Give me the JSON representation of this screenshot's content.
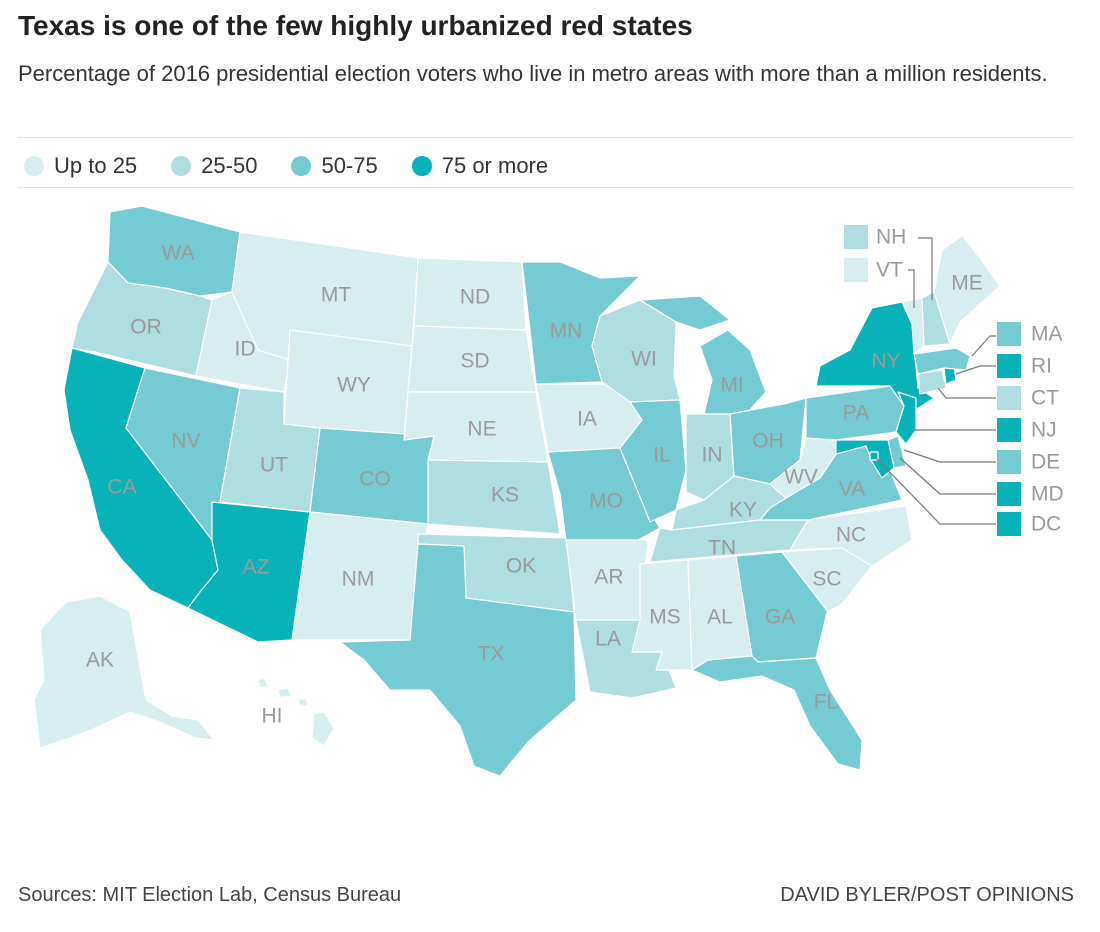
{
  "title": "Texas is one of the few highly urbanized red states",
  "subtitle": "Percentage of 2016 presidential election voters who live in metro areas with more than a million residents.",
  "legend": [
    {
      "label": "Up to 25",
      "color": "#d7eef0"
    },
    {
      "label": "25-50",
      "color": "#aedde2"
    },
    {
      "label": "50-75",
      "color": "#75cbd3"
    },
    {
      "label": "75 or more",
      "color": "#07b2b9"
    }
  ],
  "states": {
    "WA": {
      "label": "WA",
      "bin": 2
    },
    "OR": {
      "label": "OR",
      "bin": 1
    },
    "CA": {
      "label": "CA",
      "bin": 3
    },
    "ID": {
      "label": "ID",
      "bin": 0
    },
    "NV": {
      "label": "NV",
      "bin": 2
    },
    "AZ": {
      "label": "AZ",
      "bin": 3
    },
    "MT": {
      "label": "MT",
      "bin": 0
    },
    "WY": {
      "label": "WY",
      "bin": 0
    },
    "UT": {
      "label": "UT",
      "bin": 1
    },
    "CO": {
      "label": "CO",
      "bin": 2
    },
    "NM": {
      "label": "NM",
      "bin": 0
    },
    "ND": {
      "label": "ND",
      "bin": 0
    },
    "SD": {
      "label": "SD",
      "bin": 0
    },
    "NE": {
      "label": "NE",
      "bin": 0
    },
    "KS": {
      "label": "KS",
      "bin": 1
    },
    "OK": {
      "label": "OK",
      "bin": 1
    },
    "TX": {
      "label": "TX",
      "bin": 2
    },
    "MN": {
      "label": "MN",
      "bin": 2
    },
    "IA": {
      "label": "IA",
      "bin": 0
    },
    "MO": {
      "label": "MO",
      "bin": 2
    },
    "AR": {
      "label": "AR",
      "bin": 0
    },
    "LA": {
      "label": "LA",
      "bin": 1
    },
    "WI": {
      "label": "WI",
      "bin": 1
    },
    "IL": {
      "label": "IL",
      "bin": 2
    },
    "MI": {
      "label": "MI",
      "bin": 2
    },
    "IN": {
      "label": "IN",
      "bin": 1
    },
    "OH": {
      "label": "OH",
      "bin": 2
    },
    "KY": {
      "label": "KY",
      "bin": 1
    },
    "TN": {
      "label": "TN",
      "bin": 1
    },
    "MS": {
      "label": "MS",
      "bin": 0
    },
    "AL": {
      "label": "AL",
      "bin": 0
    },
    "GA": {
      "label": "GA",
      "bin": 2
    },
    "FL": {
      "label": "FL",
      "bin": 2
    },
    "SC": {
      "label": "SC",
      "bin": 0
    },
    "NC": {
      "label": "NC",
      "bin": 0
    },
    "VA": {
      "label": "VA",
      "bin": 2
    },
    "WV": {
      "label": "WV",
      "bin": 0
    },
    "PA": {
      "label": "PA",
      "bin": 2
    },
    "NY": {
      "label": "NY",
      "bin": 3
    },
    "ME": {
      "label": "ME",
      "bin": 0
    },
    "AK": {
      "label": "AK",
      "bin": 0
    },
    "HI": {
      "label": "HI",
      "bin": 0
    },
    "NH": {
      "label": "NH",
      "bin": 1
    },
    "VT": {
      "label": "VT",
      "bin": 0
    },
    "MA": {
      "label": "MA",
      "bin": 2
    },
    "RI": {
      "label": "RI",
      "bin": 3
    },
    "CT": {
      "label": "CT",
      "bin": 1
    },
    "NJ": {
      "label": "NJ",
      "bin": 3
    },
    "DE": {
      "label": "DE",
      "bin": 2
    },
    "MD": {
      "label": "MD",
      "bin": 3
    },
    "DC": {
      "label": "DC",
      "bin": 3
    }
  },
  "source": "Sources: MIT Election Lab, Census Bureau",
  "credit": "DAVID BYLER/POST OPINIONS"
}
